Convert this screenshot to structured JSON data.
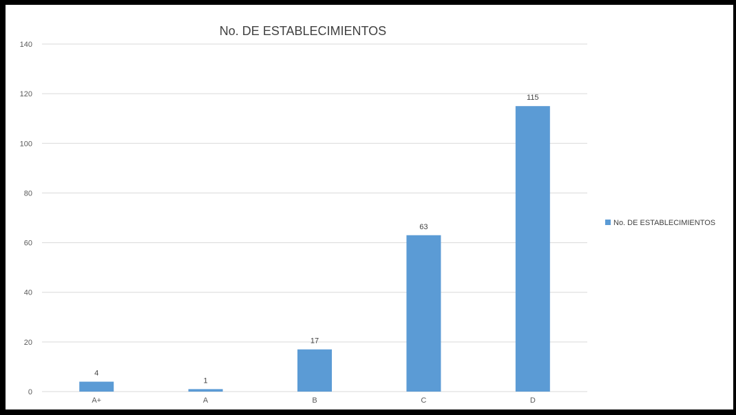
{
  "chart_data": {
    "type": "bar",
    "title": "No. DE ESTABLECIMIENTOS",
    "categories": [
      "A+",
      "A",
      "B",
      "C",
      "D"
    ],
    "series": [
      {
        "name": "No. DE ESTABLECIMIENTOS",
        "values": [
          4,
          1,
          17,
          63,
          115
        ]
      }
    ],
    "ylim": [
      0,
      140
    ],
    "yticks": [
      0,
      20,
      40,
      60,
      80,
      100,
      120,
      140
    ],
    "grid": true,
    "legend_position": "right",
    "data_labels": true,
    "colors": {
      "bar": "#5b9bd5",
      "grid": "#d9d9d9"
    }
  }
}
